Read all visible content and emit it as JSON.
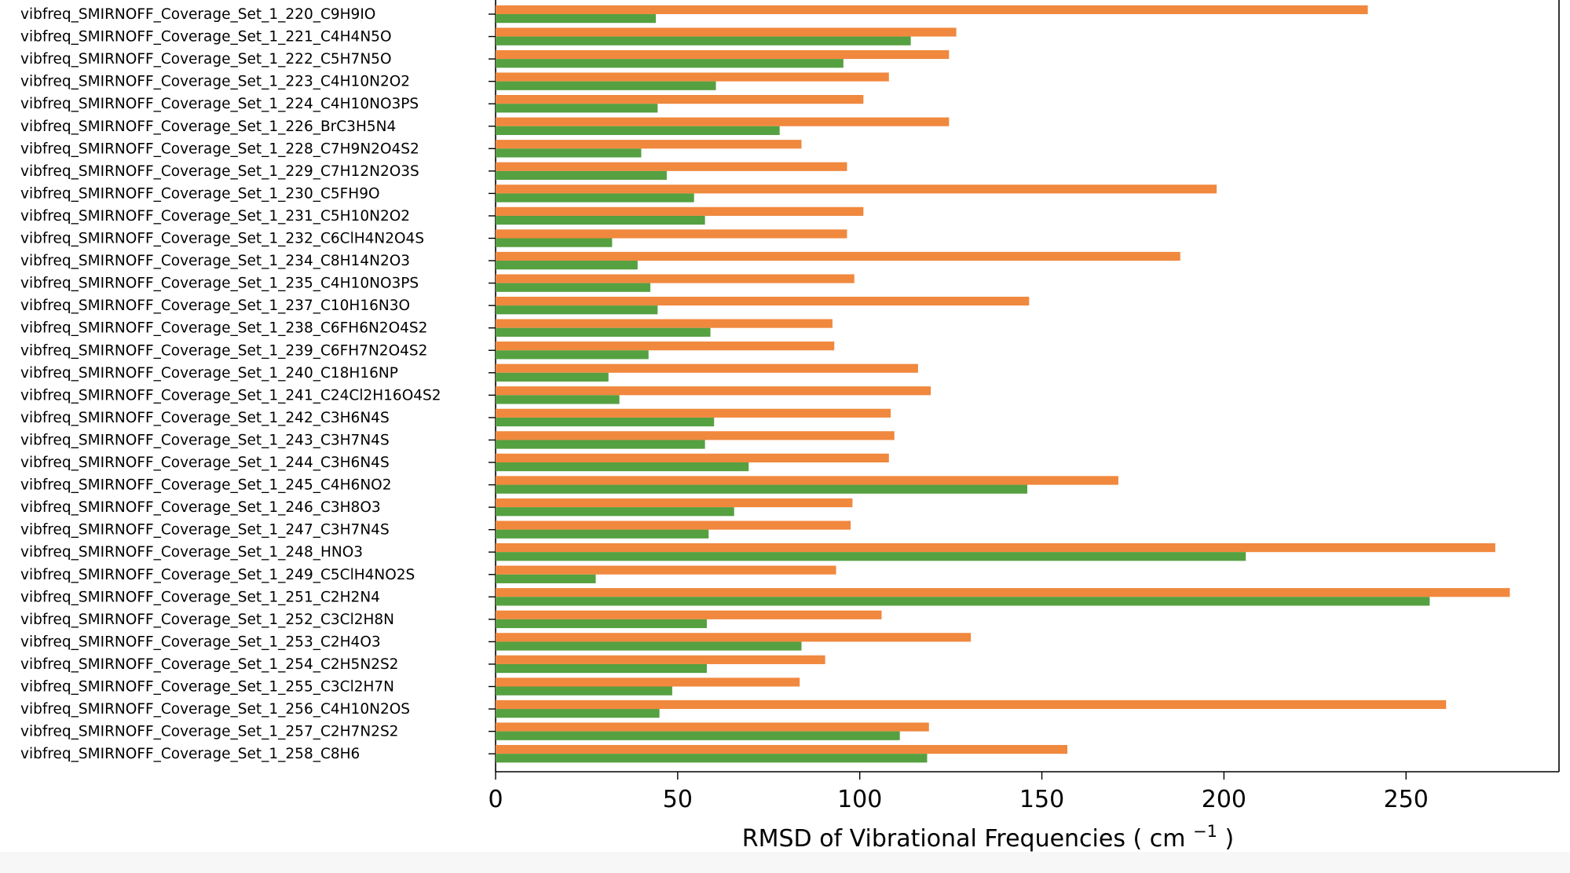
{
  "chart_data": {
    "type": "bar",
    "orientation": "horizontal",
    "xlabel_prefix": "RMSD of Vibrational Frequencies ( cm ",
    "xlabel_sup": "−1",
    "xlabel_suffix": " )",
    "xlim": [
      0,
      292
    ],
    "xticks": [
      0,
      50,
      100,
      150,
      200,
      250
    ],
    "grid": false,
    "colors": {
      "orange": "#f0883e",
      "green": "#55a040"
    },
    "categories": [
      "vibfreq_SMIRNOFF_Coverage_Set_1_220_C9H9IO",
      "vibfreq_SMIRNOFF_Coverage_Set_1_221_C4H4N5O",
      "vibfreq_SMIRNOFF_Coverage_Set_1_222_C5H7N5O",
      "vibfreq_SMIRNOFF_Coverage_Set_1_223_C4H10N2O2",
      "vibfreq_SMIRNOFF_Coverage_Set_1_224_C4H10NO3PS",
      "vibfreq_SMIRNOFF_Coverage_Set_1_226_BrC3H5N4",
      "vibfreq_SMIRNOFF_Coverage_Set_1_228_C7H9N2O4S2",
      "vibfreq_SMIRNOFF_Coverage_Set_1_229_C7H12N2O3S",
      "vibfreq_SMIRNOFF_Coverage_Set_1_230_C5FH9O",
      "vibfreq_SMIRNOFF_Coverage_Set_1_231_C5H10N2O2",
      "vibfreq_SMIRNOFF_Coverage_Set_1_232_C6ClH4N2O4S",
      "vibfreq_SMIRNOFF_Coverage_Set_1_234_C8H14N2O3",
      "vibfreq_SMIRNOFF_Coverage_Set_1_235_C4H10NO3PS",
      "vibfreq_SMIRNOFF_Coverage_Set_1_237_C10H16N3O",
      "vibfreq_SMIRNOFF_Coverage_Set_1_238_C6FH6N2O4S2",
      "vibfreq_SMIRNOFF_Coverage_Set_1_239_C6FH7N2O4S2",
      "vibfreq_SMIRNOFF_Coverage_Set_1_240_C18H16NP",
      "vibfreq_SMIRNOFF_Coverage_Set_1_241_C24Cl2H16O4S2",
      "vibfreq_SMIRNOFF_Coverage_Set_1_242_C3H6N4S",
      "vibfreq_SMIRNOFF_Coverage_Set_1_243_C3H7N4S",
      "vibfreq_SMIRNOFF_Coverage_Set_1_244_C3H6N4S",
      "vibfreq_SMIRNOFF_Coverage_Set_1_245_C4H6NO2",
      "vibfreq_SMIRNOFF_Coverage_Set_1_246_C3H8O3",
      "vibfreq_SMIRNOFF_Coverage_Set_1_247_C3H7N4S",
      "vibfreq_SMIRNOFF_Coverage_Set_1_248_HNO3",
      "vibfreq_SMIRNOFF_Coverage_Set_1_249_C5ClH4NO2S",
      "vibfreq_SMIRNOFF_Coverage_Set_1_251_C2H2N4",
      "vibfreq_SMIRNOFF_Coverage_Set_1_252_C3Cl2H8N",
      "vibfreq_SMIRNOFF_Coverage_Set_1_253_C2H4O3",
      "vibfreq_SMIRNOFF_Coverage_Set_1_254_C2H5N2S2",
      "vibfreq_SMIRNOFF_Coverage_Set_1_255_C3Cl2H7N",
      "vibfreq_SMIRNOFF_Coverage_Set_1_256_C4H10N2OS",
      "vibfreq_SMIRNOFF_Coverage_Set_1_257_C2H7N2S2",
      "vibfreq_SMIRNOFF_Coverage_Set_1_258_C8H6"
    ],
    "series": [
      {
        "color": "#f0883e",
        "values": [
          239.5,
          126.5,
          124.5,
          108,
          101,
          124.5,
          84,
          96.5,
          198,
          101,
          96.5,
          188,
          98.5,
          146.5,
          92.5,
          93,
          116,
          119.5,
          108.5,
          109.5,
          108,
          171,
          98,
          97.5,
          274.5,
          93.5,
          278.5,
          106,
          130.5,
          90.5,
          83.5,
          261,
          119,
          157
        ]
      },
      {
        "color": "#55a040",
        "values": [
          44,
          114,
          95.5,
          60.5,
          44.5,
          78,
          40,
          47,
          54.5,
          57.5,
          32,
          39,
          42.5,
          44.5,
          59,
          42,
          31,
          34,
          60,
          57.5,
          69.5,
          146,
          65.5,
          58.5,
          206,
          27.5,
          256.5,
          58,
          84,
          58,
          48.5,
          45,
          111,
          118.5
        ]
      }
    ]
  }
}
